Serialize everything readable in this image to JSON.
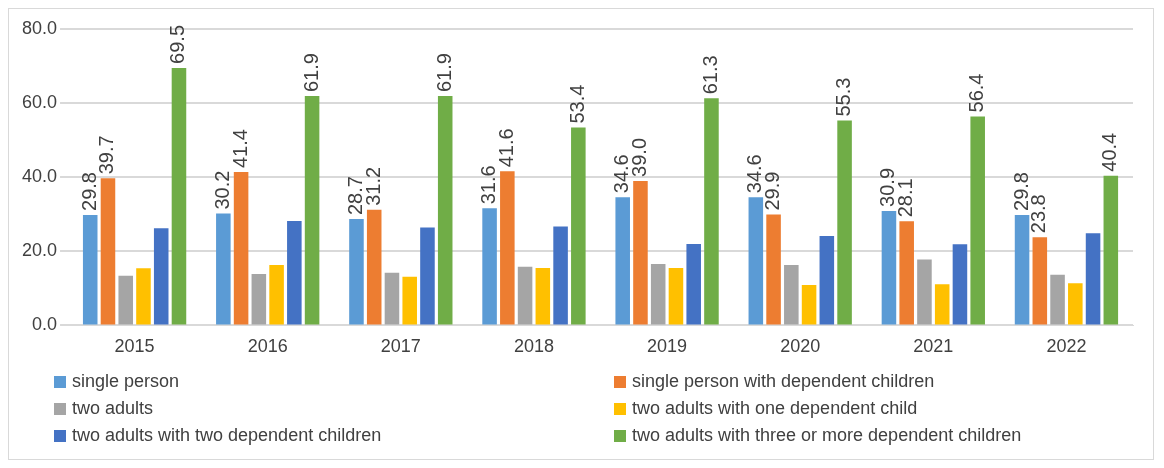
{
  "chart_data": {
    "type": "bar",
    "categories": [
      "2015",
      "2016",
      "2017",
      "2018",
      "2019",
      "2020",
      "2021",
      "2022"
    ],
    "series": [
      {
        "name": "single person",
        "color": "#5b9bd5",
        "values": [
          29.8,
          30.2,
          28.7,
          31.6,
          34.6,
          34.6,
          30.9,
          29.8
        ],
        "value_labels": [
          "29.8",
          "30.2",
          "28.7",
          "31.6",
          "34.6",
          "34.6",
          "30.9",
          "29.8"
        ]
      },
      {
        "name": "single person with dependent children",
        "color": "#ed7d31",
        "values": [
          39.7,
          41.4,
          31.2,
          41.6,
          39.0,
          29.9,
          28.1,
          23.8
        ],
        "value_labels": [
          "39.7",
          "41.4",
          "31.2",
          "41.6",
          "39.0",
          "29.9",
          "28.1",
          "23.8"
        ]
      },
      {
        "name": "two adults",
        "color": "#a5a5a5",
        "values": [
          13.4,
          13.9,
          14.2,
          15.8,
          16.6,
          16.3,
          17.8,
          13.7
        ]
      },
      {
        "name": "two adults with one dependent child",
        "color": "#ffc000",
        "values": [
          15.4,
          16.3,
          13.1,
          15.5,
          15.5,
          10.9,
          11.1,
          11.4
        ]
      },
      {
        "name": "two adults with two dependent children",
        "color": "#4472c4",
        "values": [
          26.2,
          28.2,
          26.4,
          26.7,
          22.0,
          24.1,
          21.9,
          24.9
        ]
      },
      {
        "name": "two adults with three or more dependent children",
        "color": "#70ad47",
        "values": [
          69.5,
          61.9,
          61.9,
          53.4,
          61.3,
          55.3,
          56.4,
          40.4
        ],
        "value_labels": [
          "69.5",
          "61.9",
          "61.9",
          "53.4",
          "61.3",
          "55.3",
          "56.4",
          "40.4"
        ]
      }
    ],
    "ylim": [
      0,
      80
    ],
    "yticks": [
      {
        "value": 0,
        "label": "0.0"
      },
      {
        "value": 20,
        "label": "20.0"
      },
      {
        "value": 40,
        "label": "40.0"
      },
      {
        "value": 60,
        "label": "60.0"
      },
      {
        "value": 80,
        "label": "80.0"
      }
    ],
    "grid": "y",
    "legend": "bottom"
  }
}
